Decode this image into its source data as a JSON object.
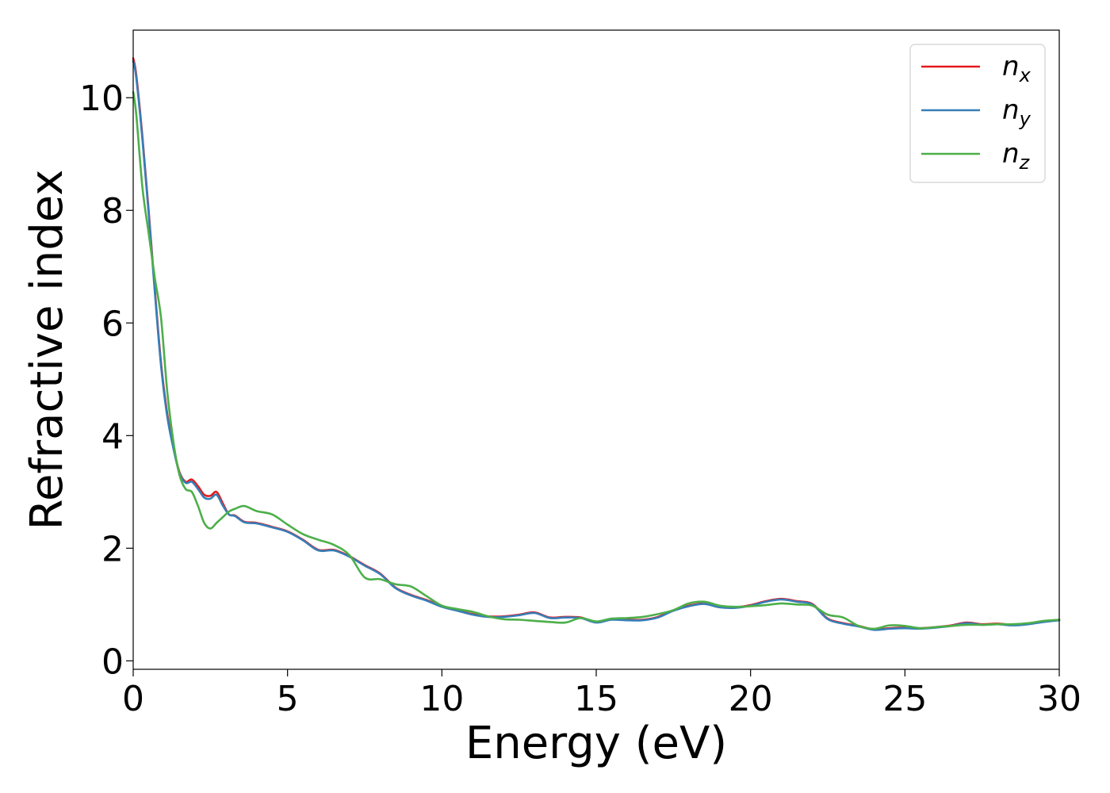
{
  "chart_data": {
    "type": "line",
    "title": "",
    "xlabel": "Energy (eV)",
    "ylabel": "Refractive index",
    "xlim": [
      0,
      30
    ],
    "ylim": [
      -0.15,
      11.2
    ],
    "xticks": [
      0,
      5,
      10,
      15,
      20,
      25,
      30
    ],
    "xtick_labels": [
      "0",
      "5",
      "10",
      "15",
      "20",
      "25",
      "30"
    ],
    "yticks": [
      0,
      2,
      4,
      6,
      8,
      10
    ],
    "ytick_labels": [
      "0",
      "2",
      "4",
      "6",
      "8",
      "10"
    ],
    "grid": false,
    "legend_position": "top-right",
    "series": [
      {
        "name": "n",
        "subscript": "x",
        "color": "#e41a1c",
        "x": [
          0,
          0.1,
          0.3,
          0.5,
          0.7,
          0.9,
          1.1,
          1.3,
          1.5,
          1.7,
          1.9,
          2.1,
          2.3,
          2.5,
          2.7,
          2.9,
          3.1,
          3.3,
          3.6,
          4.0,
          4.5,
          5.0,
          5.5,
          6.0,
          6.5,
          7.0,
          7.5,
          8.0,
          8.5,
          9.0,
          9.5,
          10.0,
          10.5,
          11.0,
          11.5,
          12.0,
          12.5,
          13.0,
          13.5,
          14.0,
          14.5,
          15.0,
          15.5,
          16.0,
          16.5,
          17.0,
          17.5,
          18.0,
          18.5,
          19.0,
          19.5,
          20.0,
          20.5,
          21.0,
          21.5,
          22.0,
          22.5,
          23.0,
          23.5,
          24.0,
          24.5,
          25.0,
          25.5,
          26.0,
          26.5,
          27.0,
          27.5,
          28.0,
          28.5,
          29.0,
          29.5,
          30.0
        ],
        "y": [
          10.7,
          10.4,
          9.3,
          8.0,
          6.6,
          5.3,
          4.4,
          3.8,
          3.35,
          3.18,
          3.22,
          3.1,
          2.95,
          2.93,
          3.0,
          2.8,
          2.6,
          2.58,
          2.47,
          2.45,
          2.38,
          2.3,
          2.15,
          1.97,
          1.97,
          1.86,
          1.7,
          1.55,
          1.3,
          1.17,
          1.08,
          0.97,
          0.9,
          0.83,
          0.79,
          0.79,
          0.82,
          0.86,
          0.77,
          0.78,
          0.77,
          0.69,
          0.74,
          0.73,
          0.73,
          0.78,
          0.9,
          0.98,
          1.02,
          0.96,
          0.95,
          0.99,
          1.06,
          1.1,
          1.06,
          1.01,
          0.75,
          0.67,
          0.62,
          0.56,
          0.58,
          0.59,
          0.58,
          0.6,
          0.63,
          0.68,
          0.65,
          0.66,
          0.64,
          0.66,
          0.7,
          0.73
        ]
      },
      {
        "name": "n",
        "subscript": "y",
        "color": "#377eb8",
        "x": [
          0,
          0.1,
          0.3,
          0.5,
          0.7,
          0.9,
          1.1,
          1.3,
          1.5,
          1.7,
          1.9,
          2.1,
          2.3,
          2.5,
          2.7,
          2.9,
          3.1,
          3.3,
          3.6,
          4.0,
          4.5,
          5.0,
          5.5,
          6.0,
          6.5,
          7.0,
          7.5,
          8.0,
          8.5,
          9.0,
          9.5,
          10.0,
          10.5,
          11.0,
          11.5,
          12.0,
          12.5,
          13.0,
          13.5,
          14.0,
          14.5,
          15.0,
          15.5,
          16.0,
          16.5,
          17.0,
          17.5,
          18.0,
          18.5,
          19.0,
          19.5,
          20.0,
          20.5,
          21.0,
          21.5,
          22.0,
          22.5,
          23.0,
          23.5,
          24.0,
          24.5,
          25.0,
          25.5,
          26.0,
          26.5,
          27.0,
          27.5,
          28.0,
          28.5,
          29.0,
          29.5,
          30.0
        ],
        "y": [
          10.65,
          10.35,
          9.25,
          7.95,
          6.55,
          5.25,
          4.35,
          3.78,
          3.33,
          3.16,
          3.18,
          3.05,
          2.9,
          2.88,
          2.95,
          2.76,
          2.6,
          2.57,
          2.46,
          2.44,
          2.37,
          2.29,
          2.14,
          1.96,
          1.96,
          1.85,
          1.69,
          1.54,
          1.29,
          1.16,
          1.07,
          0.96,
          0.89,
          0.82,
          0.78,
          0.78,
          0.81,
          0.85,
          0.76,
          0.77,
          0.76,
          0.68,
          0.73,
          0.72,
          0.72,
          0.77,
          0.89,
          0.97,
          1.01,
          0.95,
          0.94,
          0.98,
          1.05,
          1.09,
          1.05,
          1.0,
          0.74,
          0.66,
          0.61,
          0.55,
          0.57,
          0.58,
          0.57,
          0.59,
          0.62,
          0.67,
          0.64,
          0.65,
          0.63,
          0.65,
          0.69,
          0.72
        ]
      },
      {
        "name": "n",
        "subscript": "z",
        "color": "#4daf4a",
        "x": [
          0,
          0.1,
          0.3,
          0.5,
          0.7,
          0.9,
          1.1,
          1.3,
          1.5,
          1.7,
          1.9,
          2.1,
          2.3,
          2.5,
          2.7,
          2.9,
          3.1,
          3.3,
          3.6,
          4.0,
          4.5,
          5.0,
          5.5,
          6.0,
          6.5,
          7.0,
          7.5,
          8.0,
          8.5,
          9.0,
          9.5,
          10.0,
          10.5,
          11.0,
          11.5,
          12.0,
          12.5,
          13.0,
          13.5,
          14.0,
          14.5,
          15.0,
          15.5,
          16.0,
          16.5,
          17.0,
          17.5,
          18.0,
          18.5,
          19.0,
          19.5,
          20.0,
          20.5,
          21.0,
          21.5,
          22.0,
          22.5,
          23.0,
          23.5,
          24.0,
          24.5,
          25.0,
          25.5,
          26.0,
          26.5,
          27.0,
          27.5,
          28.0,
          28.5,
          29.0,
          29.5,
          30.0
        ],
        "y": [
          10.1,
          9.7,
          8.4,
          7.6,
          6.8,
          6.1,
          4.8,
          3.9,
          3.3,
          3.05,
          3.0,
          2.75,
          2.45,
          2.35,
          2.45,
          2.55,
          2.65,
          2.7,
          2.75,
          2.66,
          2.6,
          2.42,
          2.25,
          2.15,
          2.06,
          1.88,
          1.48,
          1.45,
          1.36,
          1.32,
          1.15,
          0.98,
          0.92,
          0.87,
          0.79,
          0.74,
          0.73,
          0.71,
          0.69,
          0.68,
          0.76,
          0.7,
          0.75,
          0.76,
          0.78,
          0.83,
          0.9,
          1.02,
          1.05,
          0.98,
          0.96,
          0.97,
          0.99,
          1.02,
          1.0,
          0.98,
          0.82,
          0.77,
          0.62,
          0.57,
          0.63,
          0.62,
          0.58,
          0.6,
          0.62,
          0.64,
          0.64,
          0.65,
          0.65,
          0.67,
          0.71,
          0.73
        ]
      }
    ]
  }
}
